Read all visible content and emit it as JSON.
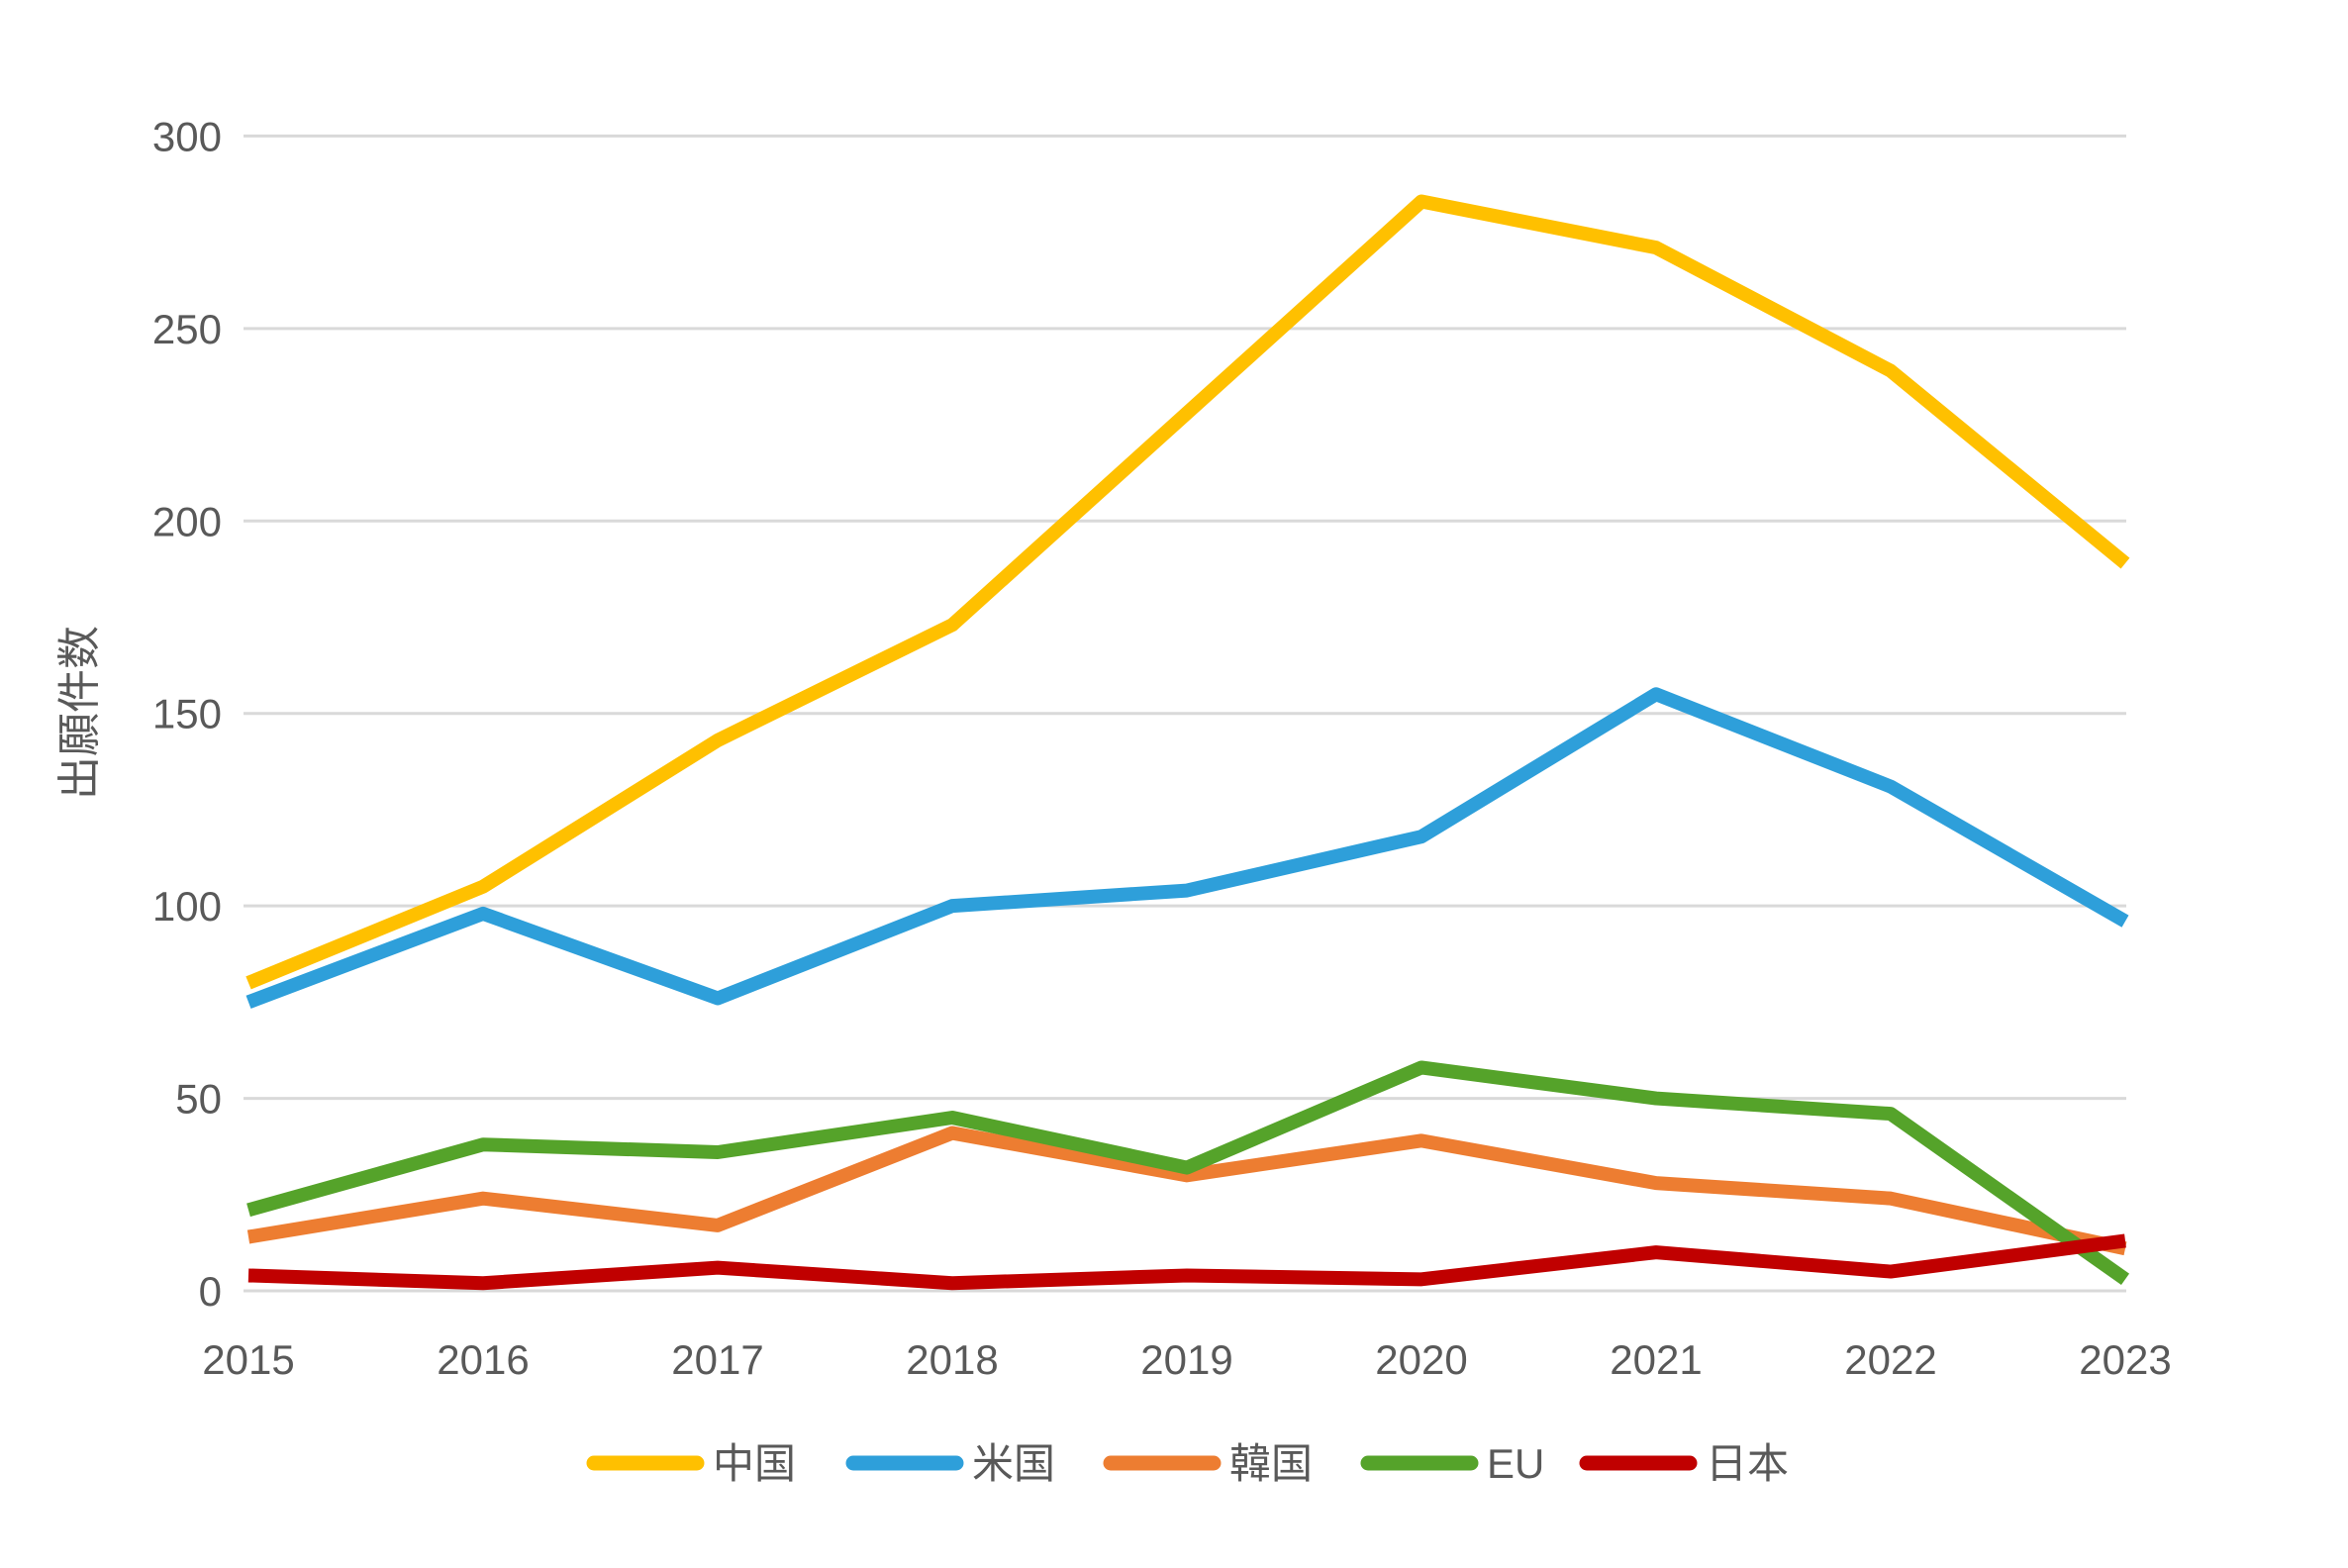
{
  "colors": {
    "background": "#FFFFFF",
    "grid": "#D9D9D9",
    "text": "#595959"
  },
  "chart_data": {
    "type": "line",
    "title": "",
    "xlabel": "",
    "ylabel": "出願件数",
    "categories": [
      "2015",
      "2016",
      "2017",
      "2018",
      "2019",
      "2020",
      "2021",
      "2022",
      "2023"
    ],
    "ylim": [
      0,
      300
    ],
    "y_ticks": [
      0,
      50,
      100,
      150,
      200,
      250,
      300
    ],
    "grid": "horizontal",
    "legend_position": "bottom",
    "series": [
      {
        "name": "中国",
        "color": "#FFC000",
        "values": [
          80,
          105,
          143,
          173,
          228,
          283,
          271,
          239,
          189
        ]
      },
      {
        "name": "米国",
        "color": "#2E9FDA",
        "values": [
          75,
          98,
          76,
          100,
          104,
          118,
          155,
          131,
          96
        ]
      },
      {
        "name": "韓国",
        "color": "#ED7D31",
        "values": [
          14,
          24,
          17,
          41,
          30,
          39,
          28,
          24,
          11
        ]
      },
      {
        "name": "EU",
        "color": "#55A32A",
        "values": [
          21,
          38,
          36,
          45,
          32,
          58,
          50,
          46,
          3
        ]
      },
      {
        "name": "日本",
        "color": "#C00000",
        "values": [
          4,
          2,
          6,
          2,
          4,
          3,
          10,
          5,
          13
        ]
      }
    ]
  }
}
